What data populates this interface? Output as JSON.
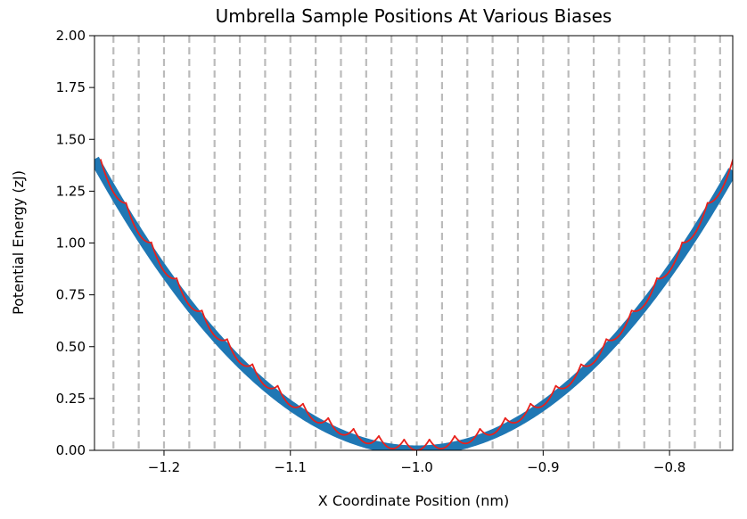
{
  "chart_data": {
    "type": "line",
    "title": "Umbrella Sample Positions At Various Biases",
    "xlabel": "X Coordinate Position (nm)",
    "ylabel": "Potential Energy (zJ)",
    "xlim": [
      -1.255,
      -0.75
    ],
    "ylim": [
      0,
      2
    ],
    "xticks": [
      {
        "value": -1.2,
        "label": "−1.2"
      },
      {
        "value": -1.1,
        "label": "−1.1"
      },
      {
        "value": -1.0,
        "label": "−1.0"
      },
      {
        "value": -0.9,
        "label": "−0.9"
      },
      {
        "value": -0.8,
        "label": "−0.8"
      }
    ],
    "yticks": [
      {
        "value": 0.0,
        "label": "0.00"
      },
      {
        "value": 0.25,
        "label": "0.25"
      },
      {
        "value": 0.5,
        "label": "0.50"
      },
      {
        "value": 0.75,
        "label": "0.75"
      },
      {
        "value": 1.0,
        "label": "1.00"
      },
      {
        "value": 1.25,
        "label": "1.25"
      },
      {
        "value": 1.5,
        "label": "1.50"
      },
      {
        "value": 1.75,
        "label": "1.75"
      },
      {
        "value": 2.0,
        "label": "2.00"
      }
    ],
    "grid": false,
    "legend": "none",
    "potential": {
      "x0": -1.0,
      "k": 21.6,
      "color": "#1f77b4"
    },
    "bias_lines": {
      "x": [
        -1.24,
        -1.22,
        -1.2,
        -1.18,
        -1.16,
        -1.14,
        -1.12,
        -1.1,
        -1.08,
        -1.06,
        -1.04,
        -1.02,
        -1.0,
        -0.98,
        -0.96,
        -0.94,
        -0.92,
        -0.9,
        -0.88,
        -0.86,
        -0.84,
        -0.82,
        -0.8,
        -0.78,
        -0.76
      ],
      "color": "#bbbbbb"
    },
    "biased_curve": {
      "kbias": 1000,
      "color": "#e8211c"
    }
  }
}
